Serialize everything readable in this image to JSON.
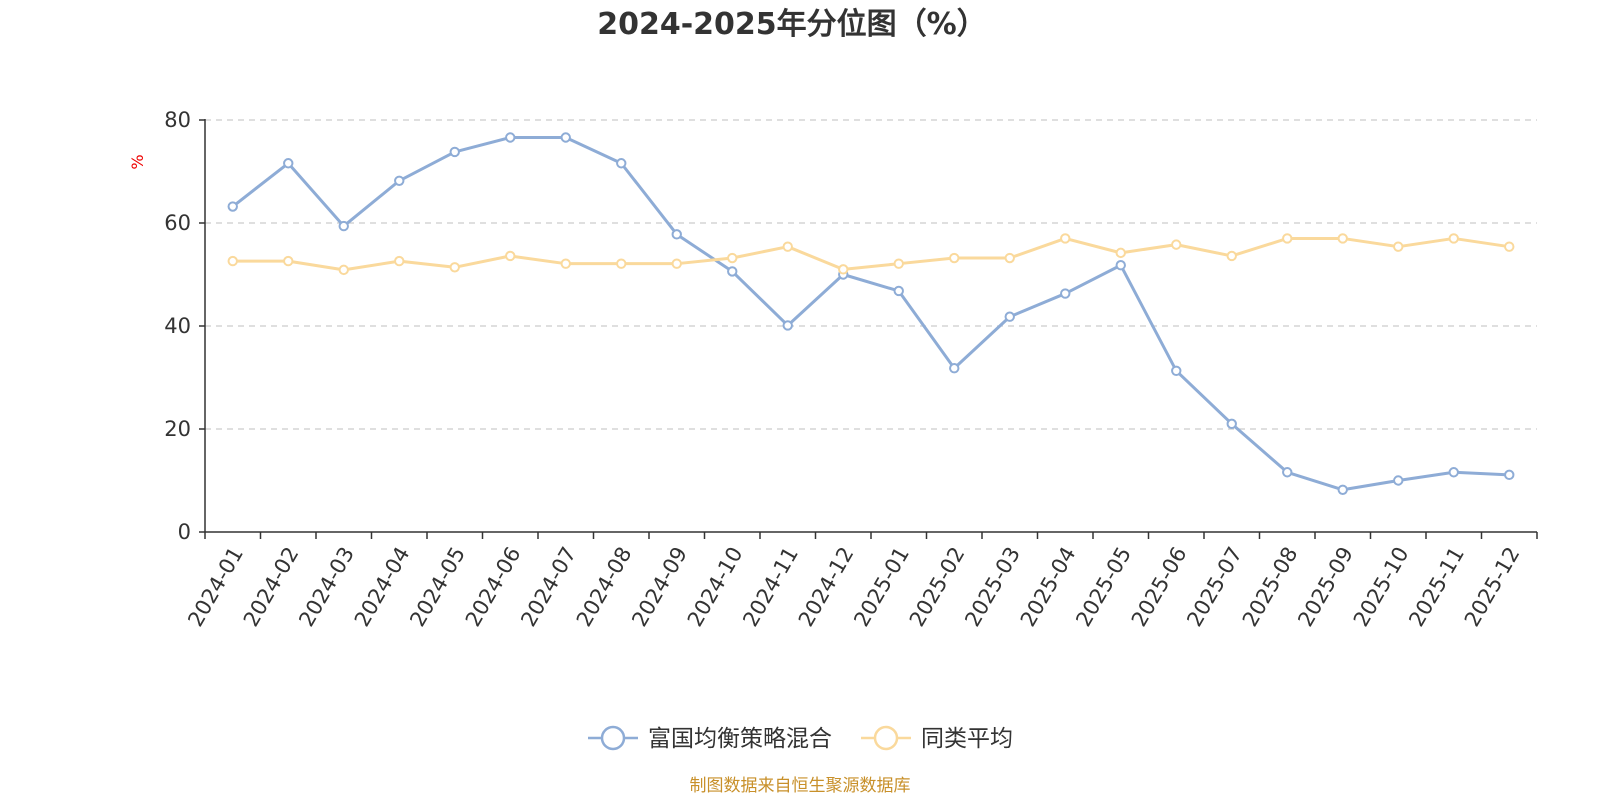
{
  "chart_data": {
    "type": "line",
    "title": "2024-2025年分位图（%）",
    "ylabel": "%",
    "xlabel": "",
    "ylim": [
      0,
      80
    ],
    "yticks": [
      0,
      20,
      40,
      60,
      80
    ],
    "grid": "horizontal-dashed",
    "legend_position": "bottom",
    "categories": [
      "2024-01",
      "2024-02",
      "2024-03",
      "2024-04",
      "2024-05",
      "2024-06",
      "2024-07",
      "2024-08",
      "2024-09",
      "2024-10",
      "2024-11",
      "2024-12",
      "2025-01",
      "2025-02",
      "2025-03",
      "2025-04",
      "2025-05",
      "2025-06",
      "2025-07",
      "2025-08",
      "2025-09",
      "2025-10",
      "2025-11",
      "2025-12"
    ],
    "series": [
      {
        "name": "富国均衡策略混合",
        "color": "#8eacd6",
        "values": [
          63.2,
          71.6,
          59.4,
          68.2,
          73.8,
          76.6,
          76.6,
          71.6,
          57.8,
          50.6,
          40.1,
          50.0,
          46.8,
          31.8,
          41.8,
          46.3,
          51.8,
          31.3,
          21.0,
          11.6,
          8.2,
          10.0,
          11.6,
          11.1
        ]
      },
      {
        "name": "同类平均",
        "color": "#fad99c",
        "values": [
          52.6,
          52.6,
          50.9,
          52.6,
          51.4,
          53.6,
          52.1,
          52.1,
          52.1,
          53.2,
          55.4,
          51.0,
          52.1,
          53.2,
          53.2,
          57.0,
          54.2,
          55.8,
          53.6,
          57.0,
          57.0,
          55.4,
          57.0,
          55.4
        ]
      }
    ]
  },
  "footer": {
    "source": "制图数据来自恒生聚源数据库"
  }
}
